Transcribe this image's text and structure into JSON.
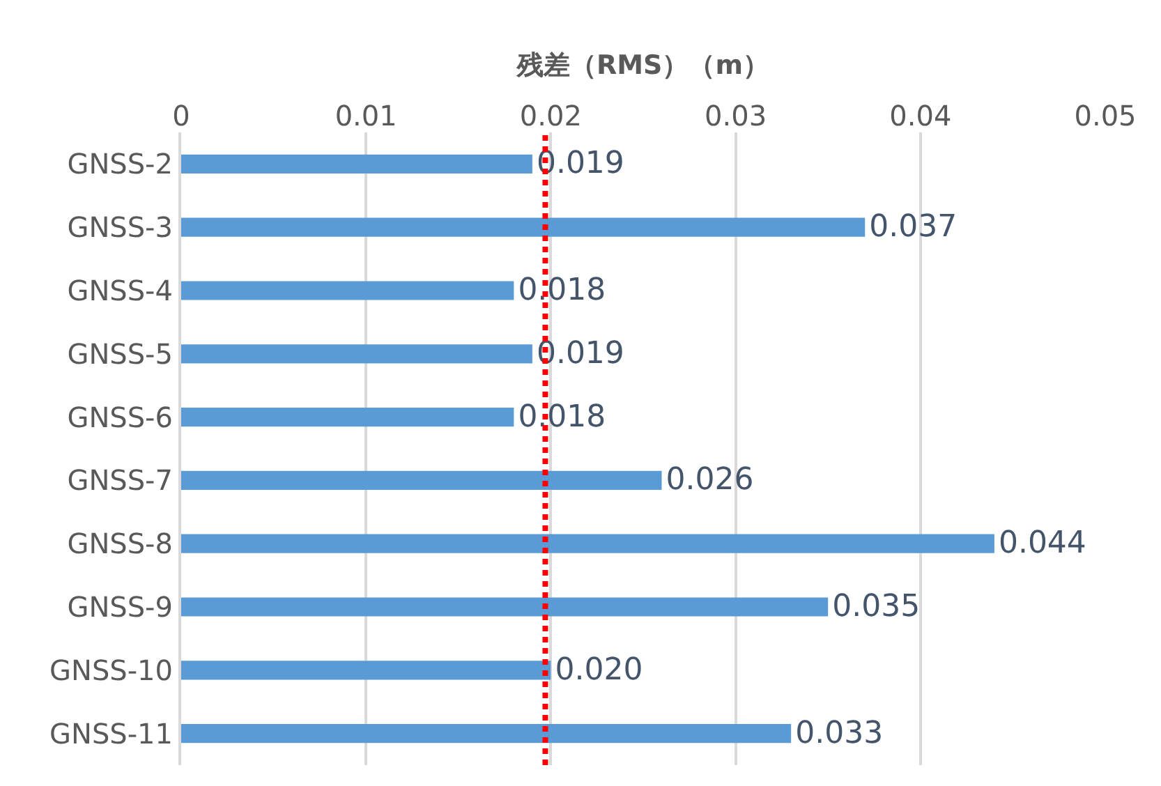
{
  "chart_data": {
    "type": "bar",
    "orientation": "horizontal",
    "xlabel": "残差（RMS）（m）",
    "categories": [
      "GNSS-2",
      "GNSS-3",
      "GNSS-4",
      "GNSS-5",
      "GNSS-6",
      "GNSS-7",
      "GNSS-8",
      "GNSS-9",
      "GNSS-10",
      "GNSS-11"
    ],
    "values": [
      0.019,
      0.037,
      0.018,
      0.019,
      0.018,
      0.026,
      0.044,
      0.035,
      0.02,
      0.033
    ],
    "value_labels": [
      "0.019",
      "0.037",
      "0.018",
      "0.019",
      "0.018",
      "0.026",
      "0.044",
      "0.035",
      "0.020",
      "0.033"
    ],
    "color": "#5b9bd5",
    "xlim": [
      0,
      0.05
    ],
    "xticks": [
      0,
      0.01,
      0.02,
      0.03,
      0.04,
      0.05
    ],
    "grid": "x",
    "ref_lines": [
      {
        "axis": "x",
        "value": 0.0197,
        "color": "#ff0000",
        "line_style": "dotted"
      }
    ]
  }
}
